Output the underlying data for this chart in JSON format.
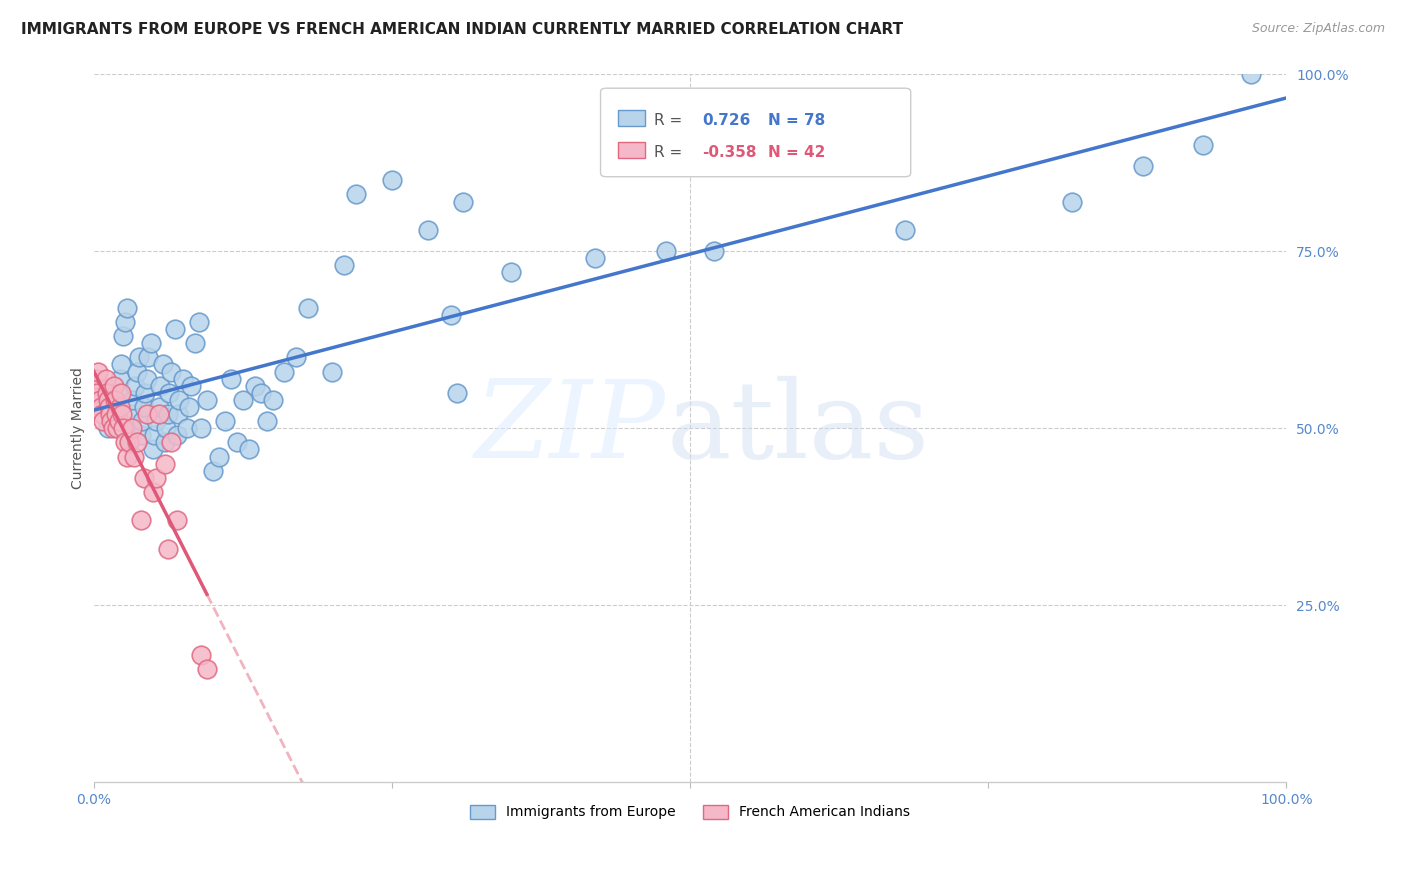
{
  "title": "IMMIGRANTS FROM EUROPE VS FRENCH AMERICAN INDIAN CURRENTLY MARRIED CORRELATION CHART",
  "source": "Source: ZipAtlas.com",
  "ylabel": "Currently Married",
  "legend_label1": "Immigrants from Europe",
  "legend_label2": "French American Indians",
  "R1": 0.726,
  "N1": 78,
  "R2": -0.358,
  "N2": 42,
  "blue_color": "#b8d4ea",
  "blue_edge": "#6699cc",
  "pink_color": "#f5b8c8",
  "pink_edge": "#e06880",
  "line_blue": "#4477cc",
  "line_pink": "#e05878",
  "background": "#ffffff",
  "grid_color": "#cccccc",
  "blue_x": [
    1.2,
    1.5,
    1.8,
    2.0,
    2.1,
    2.2,
    2.3,
    2.5,
    2.6,
    2.8,
    3.0,
    3.1,
    3.2,
    3.3,
    3.5,
    3.6,
    3.8,
    4.0,
    4.1,
    4.2,
    4.3,
    4.5,
    4.6,
    4.8,
    5.0,
    5.1,
    5.2,
    5.5,
    5.6,
    5.8,
    6.0,
    6.1,
    6.2,
    6.3,
    6.5,
    6.8,
    7.0,
    7.1,
    7.2,
    7.5,
    7.8,
    8.0,
    8.2,
    8.5,
    8.8,
    9.0,
    9.5,
    10.0,
    10.5,
    11.0,
    11.5,
    12.0,
    12.5,
    13.0,
    13.5,
    14.0,
    14.5,
    15.0,
    16.0,
    17.0,
    18.0,
    20.0,
    21.0,
    30.0,
    30.5,
    35.0,
    42.0,
    48.0,
    52.0,
    68.0,
    82.0,
    88.0,
    93.0,
    97.0,
    28.0,
    31.0,
    22.0,
    25.0
  ],
  "blue_y": [
    50,
    51,
    52,
    53,
    55,
    57,
    59,
    63,
    65,
    67,
    48,
    50,
    52,
    54,
    56,
    58,
    60,
    49,
    51,
    53,
    55,
    57,
    60,
    62,
    47,
    49,
    51,
    53,
    56,
    59,
    48,
    50,
    52,
    55,
    58,
    64,
    49,
    52,
    54,
    57,
    50,
    53,
    56,
    62,
    65,
    50,
    54,
    44,
    46,
    51,
    57,
    48,
    54,
    47,
    56,
    55,
    51,
    54,
    58,
    60,
    67,
    58,
    73,
    66,
    55,
    72,
    74,
    75,
    75,
    78,
    82,
    87,
    90,
    100,
    78,
    82,
    83,
    85
  ],
  "pink_x": [
    0.1,
    0.2,
    0.3,
    0.4,
    0.5,
    0.6,
    0.7,
    0.8,
    1.0,
    1.1,
    1.2,
    1.3,
    1.4,
    1.5,
    1.6,
    1.7,
    1.8,
    1.9,
    2.0,
    2.1,
    2.2,
    2.3,
    2.4,
    2.5,
    2.6,
    2.8,
    3.0,
    3.2,
    3.4,
    3.6,
    4.0,
    4.2,
    4.5,
    5.0,
    5.2,
    5.5,
    6.0,
    6.2,
    6.5,
    7.0,
    9.0,
    9.5
  ],
  "pink_y": [
    56,
    57,
    55,
    58,
    54,
    53,
    52,
    51,
    57,
    55,
    54,
    53,
    52,
    51,
    50,
    56,
    54,
    52,
    50,
    51,
    53,
    55,
    52,
    50,
    48,
    46,
    48,
    50,
    46,
    48,
    37,
    43,
    52,
    41,
    43,
    52,
    45,
    33,
    48,
    37,
    18,
    16
  ],
  "xlim": [
    0,
    100
  ],
  "ylim": [
    0,
    100
  ],
  "xticks": [
    0,
    25,
    50,
    75,
    100
  ],
  "yticks": [
    25,
    50,
    75,
    100
  ]
}
